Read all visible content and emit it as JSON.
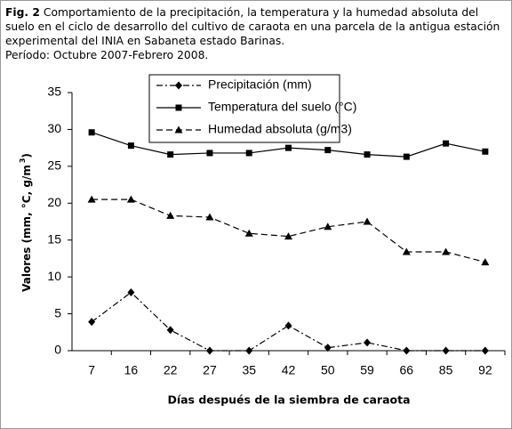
{
  "chart_data": {
    "type": "line",
    "title": "Fig. 2",
    "subtitle": "Comportamiento de la precipitación, la temperatura y la humedad absoluta del suelo en el ciclo de desarrollo del cultivo de caraota en una parcela de la antigua estación experimental del INIA en Sabaneta estado Barinas.",
    "note": "Período: Octubre 2007-Febrero 2008.",
    "xlabel": "Días después de la siembra de caraota",
    "ylabel_parts": [
      "Valores (mm, °C, g/m",
      "3",
      ")"
    ],
    "categories": [
      "7",
      "16",
      "22",
      "27",
      "35",
      "42",
      "50",
      "59",
      "66",
      "85",
      "92"
    ],
    "series": [
      {
        "name": "Precipitación (mm)",
        "color": "#000000",
        "marker": "diamond",
        "dash": "dashdot",
        "values": [
          3.9,
          7.9,
          2.8,
          0,
          0,
          3.4,
          0.4,
          1.1,
          0,
          0,
          0
        ]
      },
      {
        "name": "Temperatura del suelo (°C)",
        "color": "#000000",
        "marker": "square",
        "dash": "solid",
        "values": [
          29.6,
          27.8,
          26.6,
          26.8,
          26.8,
          27.5,
          27.2,
          26.6,
          26.3,
          28.1,
          27.0
        ]
      },
      {
        "name": "Humedad absoluta (g/m3)",
        "color": "#000000",
        "marker": "triangle",
        "dash": "dashed",
        "values": [
          20.5,
          20.5,
          18.3,
          18.1,
          15.9,
          15.5,
          16.8,
          17.5,
          13.4,
          13.4,
          12.0
        ]
      }
    ],
    "ylim": [
      0,
      35
    ],
    "yticks": [
      0,
      5,
      10,
      15,
      20,
      25,
      30,
      35
    ]
  }
}
